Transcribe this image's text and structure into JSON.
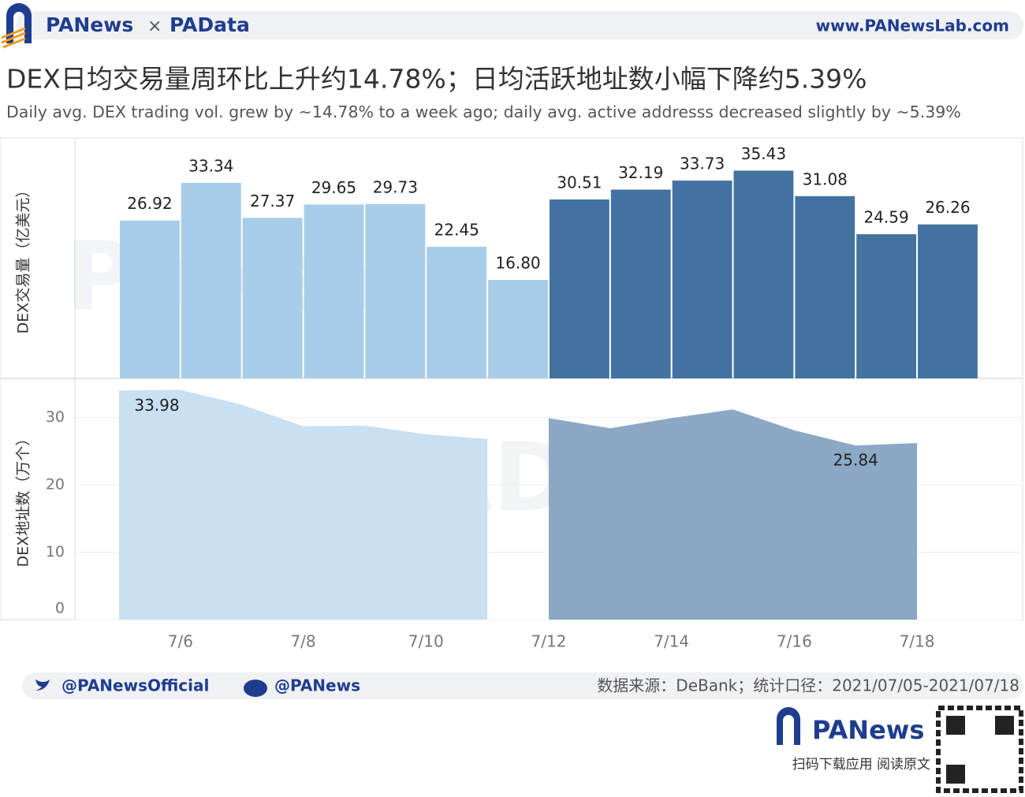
{
  "header": {
    "brand": "PANews",
    "cross": "×",
    "brand2": "PAData",
    "url": "www.PANewsLab.com"
  },
  "title": "DEX日均交易量周环比上升约14.78%；日均活跃地址数小幅下降约5.39%",
  "subtitle": "Daily avg. DEX trading vol. grew by ~14.78% to a week ago; daily avg. active addresss decreased slightly by ~5.39%",
  "chart_data": [
    {
      "type": "bar",
      "ylabel": "DEX交易量（亿美元）",
      "watermark": "PANews",
      "values": [
        26.92,
        33.34,
        27.37,
        29.65,
        29.73,
        22.45,
        16.8,
        30.51,
        32.19,
        33.73,
        35.43,
        31.08,
        24.59,
        26.26
      ],
      "value_labels": [
        "26.92",
        "33.34",
        "27.37",
        "29.65",
        "29.73",
        "22.45",
        "16.80",
        "30.51",
        "32.19",
        "33.73",
        "35.43",
        "31.08",
        "24.59",
        "26.26"
      ],
      "colors": [
        "#a8cde8",
        "#a8cde8",
        "#a8cde8",
        "#a8cde8",
        "#a8cde8",
        "#a8cde8",
        "#a8cde8",
        "#4472a0",
        "#4472a0",
        "#4472a0",
        "#4472a0",
        "#4472a0",
        "#4472a0",
        "#4472a0"
      ],
      "ylim": [
        0,
        41
      ]
    },
    {
      "type": "area",
      "ylabel": "DEX地址数（万个）",
      "watermark": "PAData",
      "categories": [
        null,
        "7/6",
        null,
        "7/8",
        null,
        "7/10",
        null,
        "7/12",
        null,
        "7/14",
        null,
        "7/16",
        null,
        "7/18"
      ],
      "series": [
        {
          "color": "#c8e0f1",
          "values": [
            33.98,
            34.1,
            31.9,
            28.7,
            28.8,
            27.5,
            26.8,
            null,
            null,
            null,
            null,
            null,
            null,
            null
          ],
          "value_labels": [
            "33.98",
            null,
            null,
            null,
            null,
            null,
            null,
            null,
            null,
            null,
            null,
            null,
            null,
            null
          ]
        },
        {
          "color": "#8ba8c4",
          "values": [
            null,
            null,
            null,
            null,
            null,
            null,
            null,
            29.9,
            28.4,
            29.9,
            31.2,
            28.1,
            25.84,
            26.2
          ],
          "value_labels": [
            null,
            null,
            null,
            null,
            null,
            null,
            null,
            null,
            null,
            null,
            null,
            null,
            "25.84",
            null
          ]
        }
      ],
      "ylim": [
        0,
        35.8
      ],
      "yticks": [
        0,
        10,
        20,
        30
      ],
      "grid": true
    }
  ],
  "footer": {
    "twitter": "@PANewsOfficial",
    "weibo": "@PANews",
    "source": "数据来源：DeBank；统计口径：2021/07/05-2021/07/18",
    "app_name": "PANews",
    "app_hint": "扫码下载应用  阅读原文"
  }
}
